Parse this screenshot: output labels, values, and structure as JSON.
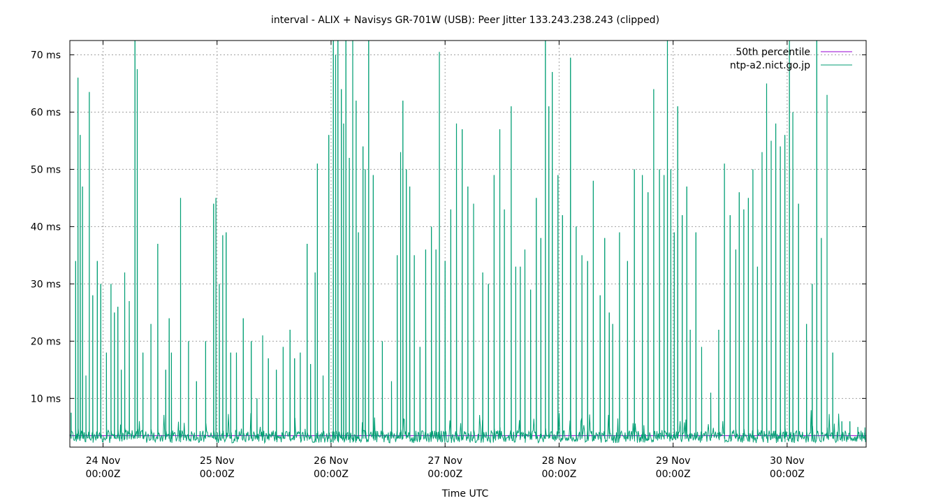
{
  "chart_data": {
    "type": "line",
    "title": "interval - ALIX + Navisys GR-701W (USB): Peer Jitter 133.243.238.243 (clipped)",
    "xlabel": "Time UTC",
    "ylabel": "",
    "x_unit": "days since 2018-11-23 00:00Z",
    "xlim": [
      0.709,
      7.693
    ],
    "ylim": [
      1.5,
      72.5
    ],
    "y_ticks": [
      10,
      20,
      30,
      40,
      50,
      60,
      70
    ],
    "y_tick_labels": [
      "10 ms",
      "20 ms",
      "30 ms",
      "40 ms",
      "50 ms",
      "60 ms",
      "70 ms"
    ],
    "x_ticks": [
      1,
      2,
      3,
      4,
      5,
      6,
      7
    ],
    "x_tick_labels": [
      [
        "24 Nov",
        "00:00Z"
      ],
      [
        "25 Nov",
        "00:00Z"
      ],
      [
        "26 Nov",
        "00:00Z"
      ],
      [
        "27 Nov",
        "00:00Z"
      ],
      [
        "28 Nov",
        "00:00Z"
      ],
      [
        "29 Nov",
        "00:00Z"
      ],
      [
        "30 Nov",
        "00:00Z"
      ]
    ],
    "grid": true,
    "legend_position": "top-right",
    "series": [
      {
        "name": "50th percentile",
        "color": "#9400d3",
        "kind": "constant",
        "value": 3.5
      },
      {
        "name": "ntp-a2.nict.go.jp",
        "color": "#009e73",
        "kind": "jitter",
        "baseline": 3.0,
        "spikes": [
          [
            0.72,
            7.5
          ],
          [
            0.76,
            34
          ],
          [
            0.78,
            66
          ],
          [
            0.8,
            56
          ],
          [
            0.82,
            47
          ],
          [
            0.85,
            14
          ],
          [
            0.88,
            63.5
          ],
          [
            0.91,
            28
          ],
          [
            0.95,
            34
          ],
          [
            0.98,
            30
          ],
          [
            1.03,
            18
          ],
          [
            1.07,
            30
          ],
          [
            1.1,
            25
          ],
          [
            1.13,
            26
          ],
          [
            1.16,
            15
          ],
          [
            1.19,
            32
          ],
          [
            1.23,
            27
          ],
          [
            1.28,
            73
          ],
          [
            1.3,
            67.5
          ],
          [
            1.35,
            18
          ],
          [
            1.42,
            23
          ],
          [
            1.48,
            37
          ],
          [
            1.55,
            15
          ],
          [
            1.58,
            24
          ],
          [
            1.6,
            18
          ],
          [
            1.68,
            45
          ],
          [
            1.75,
            20
          ],
          [
            1.82,
            13
          ],
          [
            1.9,
            20
          ],
          [
            1.97,
            44
          ],
          [
            1.99,
            45
          ],
          [
            2.02,
            30
          ],
          [
            2.05,
            38.5
          ],
          [
            2.08,
            39
          ],
          [
            2.12,
            18
          ],
          [
            2.17,
            18
          ],
          [
            2.23,
            24
          ],
          [
            2.3,
            20
          ],
          [
            2.35,
            10
          ],
          [
            2.4,
            21
          ],
          [
            2.45,
            17
          ],
          [
            2.52,
            15
          ],
          [
            2.58,
            19
          ],
          [
            2.64,
            22
          ],
          [
            2.68,
            17
          ],
          [
            2.73,
            18
          ],
          [
            2.79,
            37
          ],
          [
            2.82,
            16
          ],
          [
            2.86,
            32
          ],
          [
            2.88,
            51
          ],
          [
            2.93,
            14
          ],
          [
            2.98,
            56
          ],
          [
            3.02,
            72.5
          ],
          [
            3.04,
            70
          ],
          [
            3.06,
            72.5
          ],
          [
            3.09,
            64
          ],
          [
            3.11,
            58
          ],
          [
            3.13,
            72.5
          ],
          [
            3.16,
            52
          ],
          [
            3.19,
            72.5
          ],
          [
            3.22,
            62
          ],
          [
            3.24,
            39
          ],
          [
            3.28,
            54
          ],
          [
            3.3,
            50
          ],
          [
            3.33,
            72.5
          ],
          [
            3.37,
            49
          ],
          [
            3.45,
            20
          ],
          [
            3.53,
            13
          ],
          [
            3.58,
            35
          ],
          [
            3.61,
            53
          ],
          [
            3.63,
            62
          ],
          [
            3.66,
            50
          ],
          [
            3.69,
            47
          ],
          [
            3.73,
            35
          ],
          [
            3.78,
            19
          ],
          [
            3.83,
            36
          ],
          [
            3.88,
            40
          ],
          [
            3.92,
            36
          ],
          [
            3.95,
            70.5
          ],
          [
            4.0,
            34
          ],
          [
            4.05,
            43
          ],
          [
            4.1,
            58
          ],
          [
            4.15,
            57
          ],
          [
            4.2,
            47
          ],
          [
            4.25,
            44
          ],
          [
            4.33,
            32
          ],
          [
            4.38,
            30
          ],
          [
            4.43,
            49
          ],
          [
            4.48,
            57
          ],
          [
            4.52,
            43
          ],
          [
            4.58,
            61
          ],
          [
            4.62,
            33
          ],
          [
            4.66,
            33
          ],
          [
            4.7,
            36
          ],
          [
            4.75,
            29
          ],
          [
            4.8,
            45
          ],
          [
            4.84,
            38
          ],
          [
            4.88,
            72.5
          ],
          [
            4.91,
            61
          ],
          [
            4.94,
            67
          ],
          [
            4.99,
            49
          ],
          [
            5.03,
            42
          ],
          [
            5.1,
            69.5
          ],
          [
            5.15,
            40
          ],
          [
            5.2,
            35
          ],
          [
            5.25,
            34
          ],
          [
            5.3,
            48
          ],
          [
            5.36,
            28
          ],
          [
            5.4,
            38
          ],
          [
            5.44,
            25
          ],
          [
            5.47,
            23
          ],
          [
            5.53,
            39
          ],
          [
            5.6,
            34
          ],
          [
            5.66,
            50
          ],
          [
            5.73,
            49
          ],
          [
            5.78,
            46
          ],
          [
            5.83,
            64
          ],
          [
            5.88,
            50
          ],
          [
            5.92,
            49
          ],
          [
            5.95,
            72.5
          ],
          [
            5.98,
            50
          ],
          [
            6.01,
            39
          ],
          [
            6.04,
            61
          ],
          [
            6.08,
            42
          ],
          [
            6.12,
            47
          ],
          [
            6.15,
            22
          ],
          [
            6.2,
            39
          ],
          [
            6.25,
            19
          ],
          [
            6.33,
            11
          ],
          [
            6.4,
            22
          ],
          [
            6.45,
            51
          ],
          [
            6.5,
            42
          ],
          [
            6.55,
            36
          ],
          [
            6.58,
            46
          ],
          [
            6.62,
            43
          ],
          [
            6.66,
            45
          ],
          [
            6.7,
            50
          ],
          [
            6.74,
            33
          ],
          [
            6.78,
            53
          ],
          [
            6.82,
            65
          ],
          [
            6.86,
            55
          ],
          [
            6.9,
            58
          ],
          [
            6.94,
            54
          ],
          [
            6.98,
            56
          ],
          [
            7.02,
            72.5
          ],
          [
            7.05,
            60
          ],
          [
            7.1,
            44
          ],
          [
            7.17,
            23
          ],
          [
            7.22,
            30
          ],
          [
            7.26,
            72.5
          ],
          [
            7.3,
            38
          ],
          [
            7.35,
            63
          ],
          [
            7.4,
            18
          ],
          [
            7.48,
            6
          ],
          [
            7.55,
            6
          ],
          [
            7.62,
            5
          ],
          [
            7.68,
            4
          ]
        ]
      }
    ]
  }
}
